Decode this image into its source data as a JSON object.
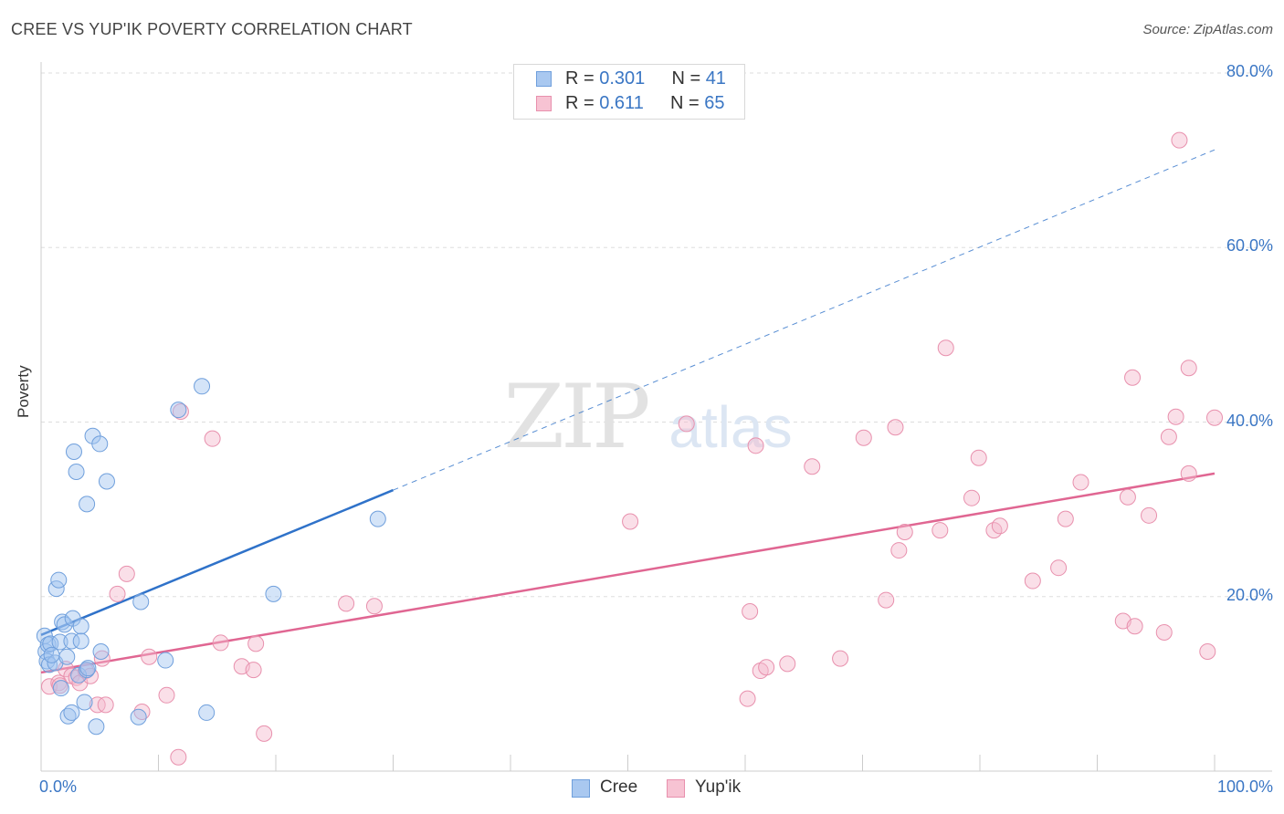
{
  "title": "CREE VS YUP'IK POVERTY CORRELATION CHART",
  "source": "Source: ZipAtlas.com",
  "watermark": {
    "zip": "ZIP",
    "atlas": "atlas"
  },
  "legend_top": {
    "rows": [
      {
        "r_label": "R = ",
        "r_value": "0.301",
        "n_label": "N = ",
        "n_value": "41",
        "color": "#a9c8f0",
        "border": "#6f9fdc"
      },
      {
        "r_label": "R = ",
        "r_value": "0.611",
        "n_label": "N = ",
        "n_value": "65",
        "color": "#f7c3d3",
        "border": "#e890ad"
      }
    ]
  },
  "legend_bottom": [
    {
      "label": "Cree",
      "color": "#a9c8f0",
      "border": "#6f9fdc"
    },
    {
      "label": "Yup'ik",
      "color": "#f7c3d3",
      "border": "#e890ad"
    }
  ],
  "colors": {
    "cree_fill": "rgba(160,195,240,0.45)",
    "cree_stroke": "#6f9fdc",
    "cree_line": "#2f72c9",
    "yupik_fill": "rgba(245,185,205,0.45)",
    "yupik_stroke": "#e890ad",
    "yupik_line": "#e06692",
    "grid": "#dddddd",
    "tick_label": "#3a76c4"
  },
  "chart_data": {
    "type": "scatter",
    "xlabel": "",
    "ylabel": "Poverty",
    "xlim": [
      0,
      100
    ],
    "ylim": [
      0,
      80
    ],
    "x_tick_labels": [
      {
        "value": 0,
        "label": "0.0%"
      },
      {
        "value": 100,
        "label": "100.0%"
      }
    ],
    "y_tick_labels": [
      {
        "value": 20,
        "label": "20.0%"
      },
      {
        "value": 40,
        "label": "40.0%"
      },
      {
        "value": 60,
        "label": "60.0%"
      },
      {
        "value": 80,
        "label": "80.0%"
      }
    ],
    "grid": true,
    "series": [
      {
        "name": "Cree",
        "trend": {
          "x": [
            0,
            30
          ],
          "y": [
            15.6,
            32.2
          ],
          "extended_to": [
            100,
            71.2
          ]
        },
        "points": [
          [
            0.3,
            15.5
          ],
          [
            0.4,
            13.7
          ],
          [
            0.5,
            12.6
          ],
          [
            0.6,
            14.5
          ],
          [
            0.7,
            12.2
          ],
          [
            0.8,
            14.6
          ],
          [
            1.2,
            12.4
          ],
          [
            1.3,
            20.9
          ],
          [
            1.5,
            21.9
          ],
          [
            1.6,
            14.8
          ],
          [
            1.7,
            9.5
          ],
          [
            1.8,
            17.1
          ],
          [
            2.0,
            16.8
          ],
          [
            2.2,
            13.1
          ],
          [
            2.3,
            6.3
          ],
          [
            2.6,
            6.7
          ],
          [
            2.6,
            14.9
          ],
          [
            2.7,
            17.5
          ],
          [
            2.8,
            36.6
          ],
          [
            3.0,
            34.3
          ],
          [
            3.2,
            11.0
          ],
          [
            3.4,
            16.6
          ],
          [
            3.4,
            14.9
          ],
          [
            3.7,
            7.9
          ],
          [
            3.9,
            11.6
          ],
          [
            3.9,
            30.6
          ],
          [
            4.0,
            11.8
          ],
          [
            4.4,
            38.4
          ],
          [
            4.7,
            5.1
          ],
          [
            5.0,
            37.5
          ],
          [
            5.1,
            13.7
          ],
          [
            5.6,
            33.2
          ],
          [
            8.3,
            6.2
          ],
          [
            8.5,
            19.4
          ],
          [
            10.6,
            12.7
          ],
          [
            11.7,
            41.4
          ],
          [
            13.7,
            44.1
          ],
          [
            14.1,
            6.7
          ],
          [
            19.8,
            20.3
          ],
          [
            28.7,
            28.9
          ],
          [
            0.9,
            13.3
          ]
        ]
      },
      {
        "name": "Yup'ik",
        "trend": {
          "x": [
            0,
            100
          ],
          "y": [
            11.3,
            34.1
          ]
        },
        "points": [
          [
            0.7,
            9.7
          ],
          [
            1.5,
            10.1
          ],
          [
            1.6,
            9.8
          ],
          [
            2.1,
            11.7
          ],
          [
            2.6,
            10.9
          ],
          [
            3.0,
            10.7
          ],
          [
            3.3,
            10.1
          ],
          [
            3.8,
            11.5
          ],
          [
            4.2,
            10.9
          ],
          [
            4.8,
            7.6
          ],
          [
            5.2,
            12.9
          ],
          [
            5.5,
            7.6
          ],
          [
            6.5,
            20.3
          ],
          [
            7.3,
            22.6
          ],
          [
            8.6,
            6.8
          ],
          [
            9.2,
            13.1
          ],
          [
            10.7,
            8.7
          ],
          [
            11.7,
            1.6
          ],
          [
            11.9,
            41.2
          ],
          [
            14.6,
            38.1
          ],
          [
            15.3,
            14.7
          ],
          [
            17.1,
            12.0
          ],
          [
            18.1,
            11.6
          ],
          [
            18.3,
            14.6
          ],
          [
            19.0,
            4.3
          ],
          [
            26.0,
            19.2
          ],
          [
            28.4,
            18.9
          ],
          [
            50.2,
            28.6
          ],
          [
            55.0,
            39.8
          ],
          [
            60.2,
            8.3
          ],
          [
            60.4,
            18.3
          ],
          [
            60.9,
            37.3
          ],
          [
            61.3,
            11.5
          ],
          [
            61.8,
            11.9
          ],
          [
            63.6,
            12.3
          ],
          [
            65.7,
            34.9
          ],
          [
            68.1,
            12.9
          ],
          [
            70.1,
            38.2
          ],
          [
            72.0,
            19.6
          ],
          [
            72.8,
            39.4
          ],
          [
            73.1,
            25.3
          ],
          [
            73.6,
            27.4
          ],
          [
            76.6,
            27.6
          ],
          [
            77.1,
            48.5
          ],
          [
            79.3,
            31.3
          ],
          [
            79.9,
            35.9
          ],
          [
            81.2,
            27.6
          ],
          [
            81.7,
            28.1
          ],
          [
            84.5,
            21.8
          ],
          [
            86.7,
            23.3
          ],
          [
            87.3,
            28.9
          ],
          [
            88.6,
            33.1
          ],
          [
            92.2,
            17.2
          ],
          [
            92.6,
            31.4
          ],
          [
            93.0,
            45.1
          ],
          [
            93.2,
            16.6
          ],
          [
            94.4,
            29.3
          ],
          [
            95.7,
            15.9
          ],
          [
            96.1,
            38.3
          ],
          [
            96.7,
            40.6
          ],
          [
            97.0,
            72.3
          ],
          [
            97.8,
            46.2
          ],
          [
            97.8,
            34.1
          ],
          [
            99.4,
            13.7
          ],
          [
            100.0,
            40.5
          ]
        ]
      }
    ]
  }
}
